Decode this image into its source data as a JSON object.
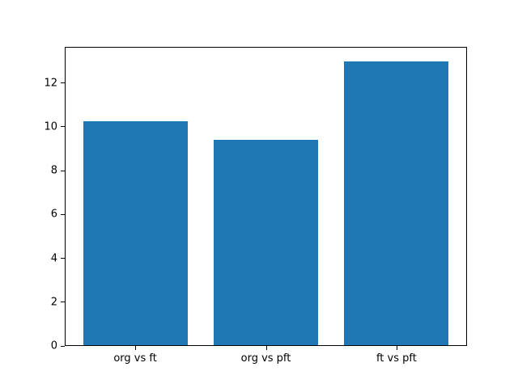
{
  "figure": {
    "background": "#ffffff"
  },
  "chart_data": {
    "type": "bar",
    "title": "",
    "xlabel": "",
    "ylabel": "",
    "categories": [
      "org vs ft",
      "org vs pft",
      "ft vs pft"
    ],
    "values": [
      10.25,
      9.4,
      13.0
    ],
    "ylim": [
      0,
      13.65
    ],
    "xlim": [
      -0.54,
      2.54
    ],
    "yticks": [
      0,
      2,
      4,
      6,
      8,
      10,
      12
    ],
    "bar_width": 0.8,
    "bar_color": "#1f77b4",
    "axis_color": "#000000",
    "text_color": "#000000",
    "grid": false,
    "legend": "none"
  }
}
